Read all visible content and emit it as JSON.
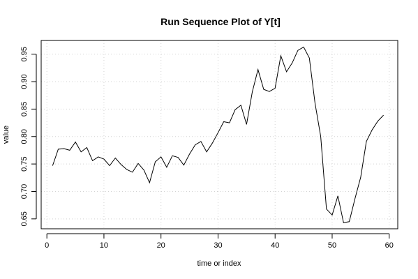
{
  "chart_data": {
    "type": "line",
    "title": "Run Sequence Plot of Y[t]",
    "xlabel": "time or index",
    "ylabel": "value",
    "xlim": [
      -1,
      61.5
    ],
    "ylim": [
      0.632,
      0.975
    ],
    "xticks": [
      0,
      10,
      20,
      30,
      40,
      50,
      60
    ],
    "yticks": [
      0.65,
      0.7,
      0.75,
      0.8,
      0.85,
      0.9,
      0.95
    ],
    "ytick_labels": [
      "0.65",
      "0.70",
      "0.75",
      "0.80",
      "0.85",
      "0.90",
      "0.95"
    ],
    "grid": true,
    "x": [
      1,
      2,
      3,
      4,
      5,
      6,
      7,
      8,
      9,
      10,
      11,
      12,
      13,
      14,
      15,
      16,
      17,
      18,
      19,
      20,
      21,
      22,
      23,
      24,
      25,
      26,
      27,
      28,
      29,
      30,
      31,
      32,
      33,
      34,
      35,
      36,
      37,
      38,
      39,
      40,
      41,
      42,
      43,
      44,
      45,
      46,
      47,
      48,
      49,
      50,
      51,
      52,
      53,
      54,
      55,
      56,
      57,
      58,
      59
    ],
    "y": [
      0.747,
      0.777,
      0.778,
      0.775,
      0.79,
      0.772,
      0.78,
      0.756,
      0.763,
      0.759,
      0.747,
      0.761,
      0.749,
      0.74,
      0.735,
      0.751,
      0.739,
      0.716,
      0.754,
      0.763,
      0.744,
      0.765,
      0.762,
      0.748,
      0.768,
      0.785,
      0.791,
      0.772,
      0.788,
      0.807,
      0.827,
      0.825,
      0.849,
      0.857,
      0.822,
      0.881,
      0.922,
      0.886,
      0.882,
      0.888,
      0.947,
      0.918,
      0.934,
      0.957,
      0.963,
      0.943,
      0.861,
      0.8,
      0.668,
      0.657,
      0.692,
      0.643,
      0.645,
      0.687,
      0.726,
      0.791,
      0.812,
      0.828,
      0.839
    ]
  }
}
